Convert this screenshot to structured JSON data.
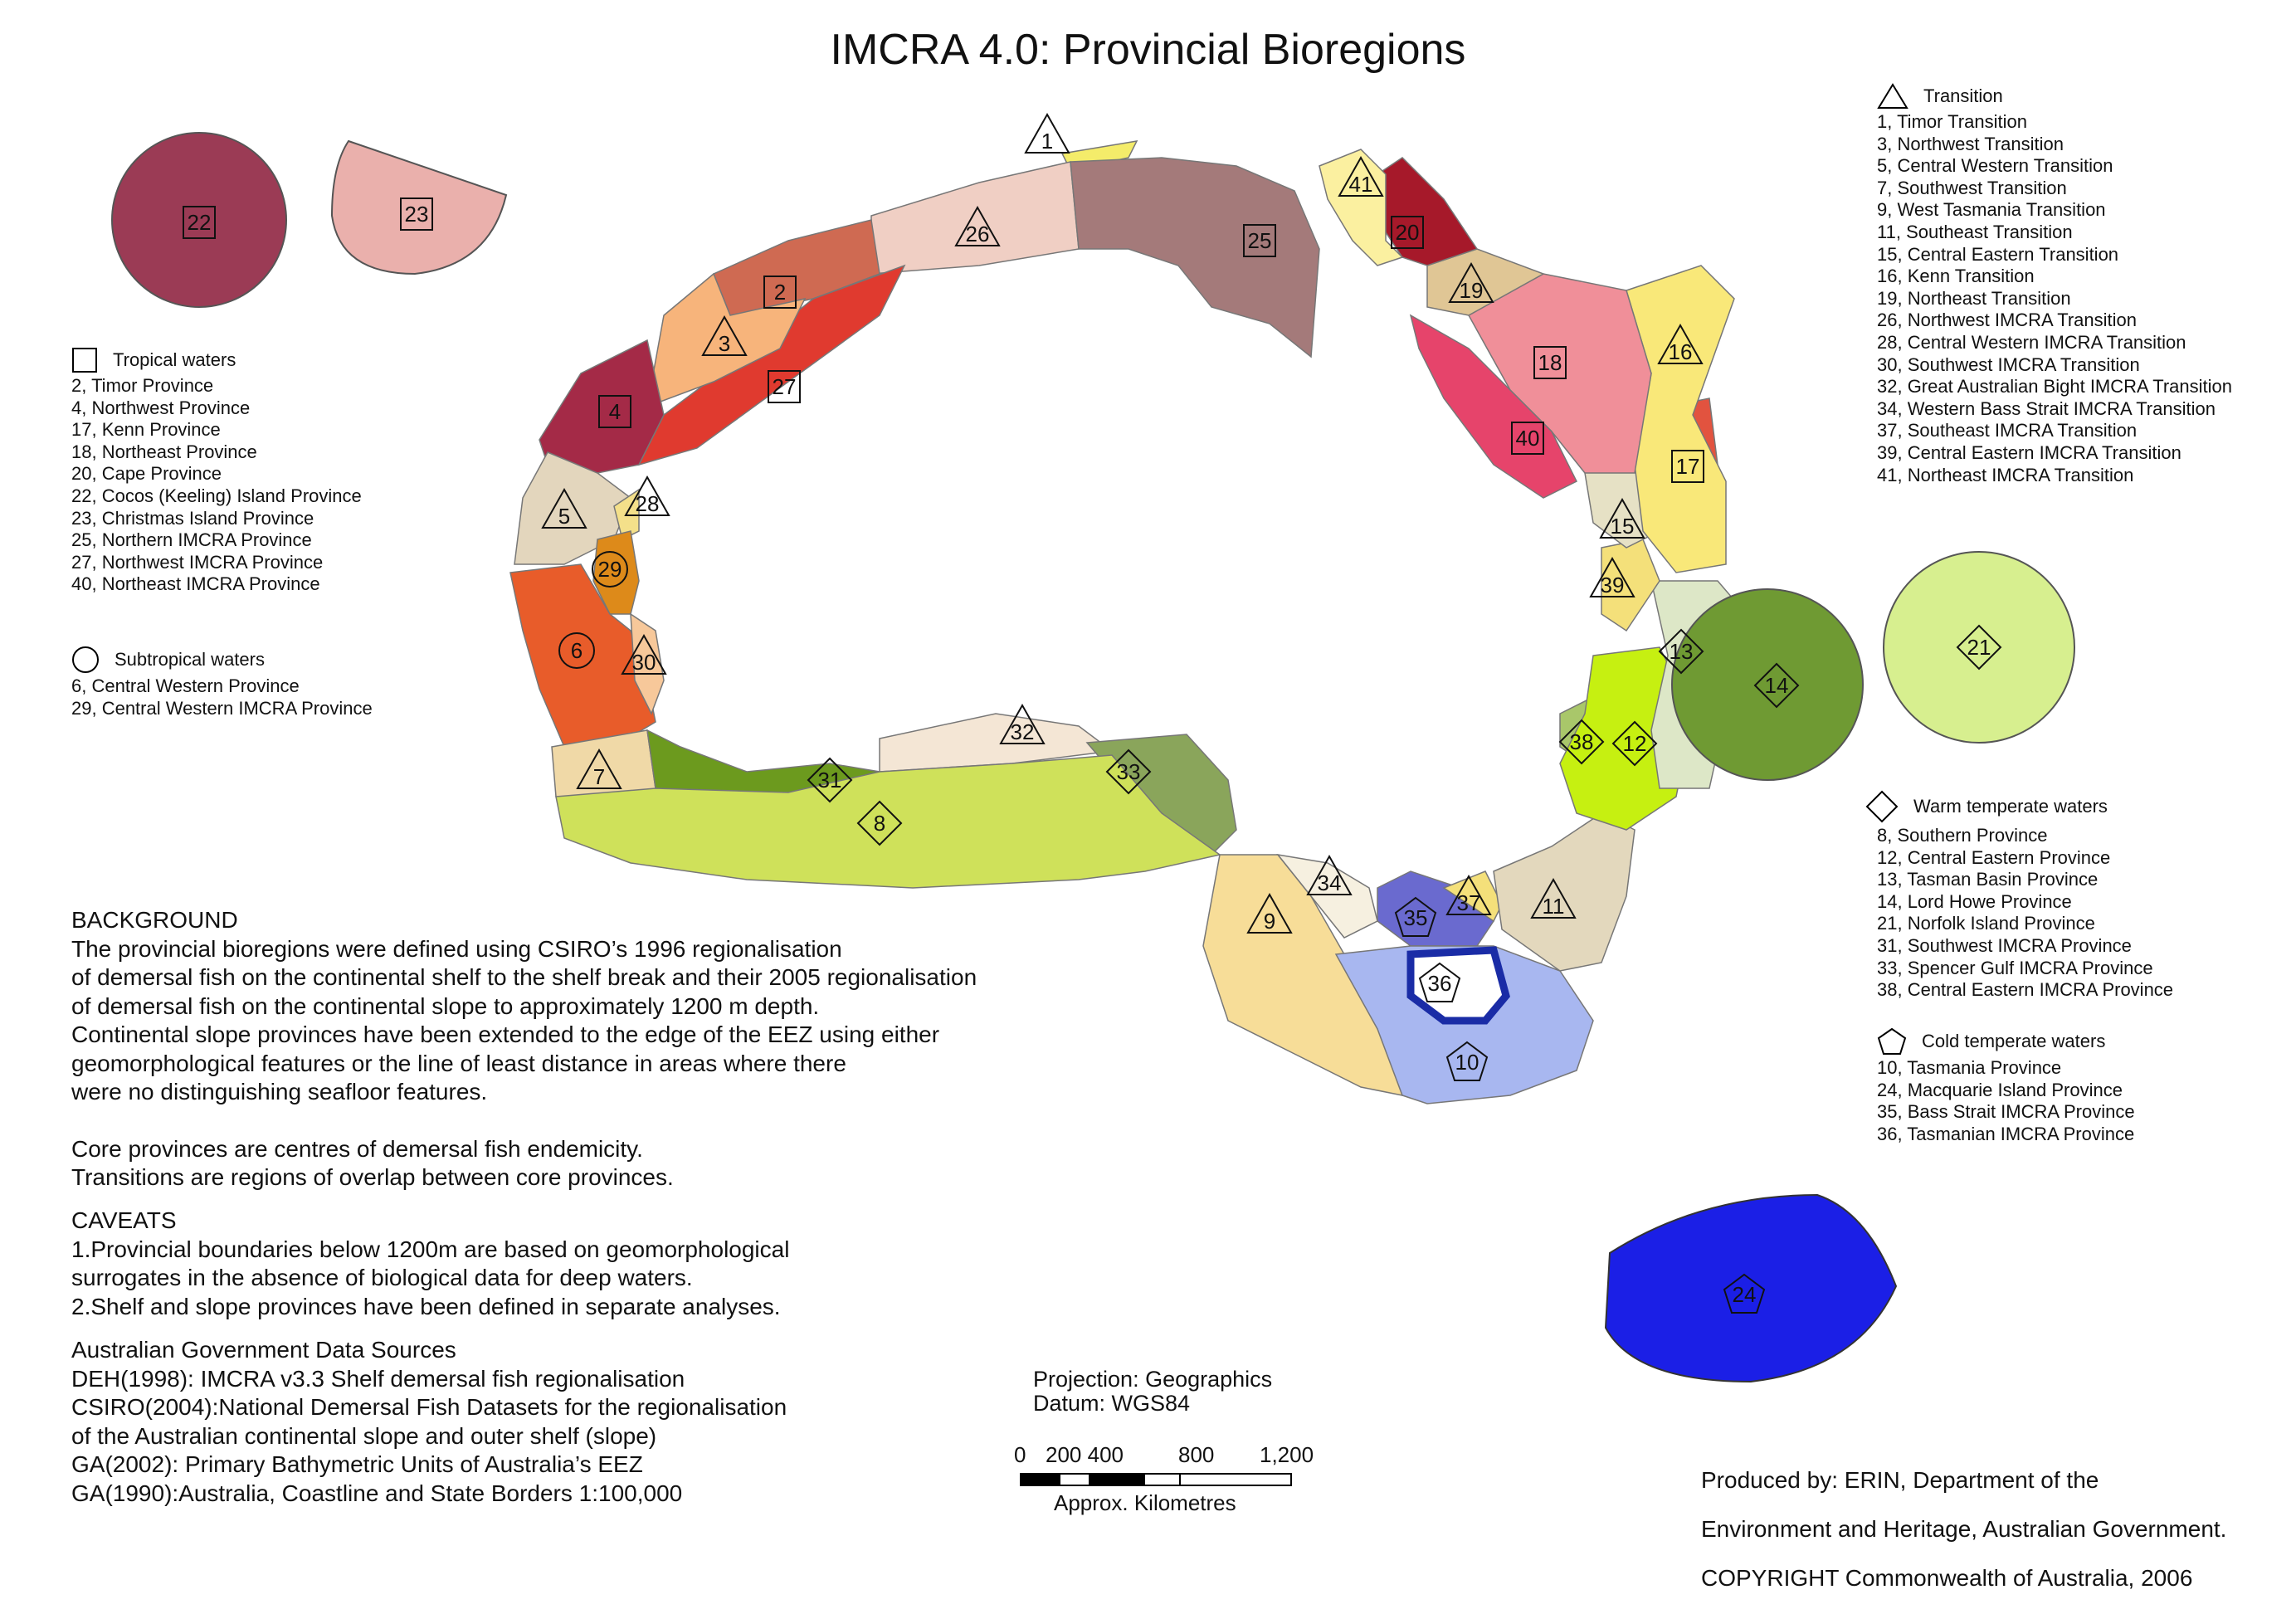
{
  "title": "IMCRA 4.0: Provincial Bioregions",
  "colors": {
    "tropical_bg": "#ffffff",
    "ocean_blue": "#1b1fe6",
    "tasmania": "#a8b7f0",
    "southern": "#cfe15a",
    "lord_howe": "#6f9a33"
  },
  "legend": {
    "transition": {
      "header": "Transition",
      "symbol": "triangle-icon",
      "items": [
        "1, Timor Transition",
        "3, Northwest Transition",
        "5, Central Western Transition",
        "7, Southwest Transition",
        "9, West Tasmania Transition",
        "11, Southeast Transition",
        "15, Central Eastern Transition",
        "16, Kenn Transition",
        "19, Northeast Transition",
        "26, Northwest IMCRA Transition",
        "28, Central Western IMCRA Transition",
        "30, Southwest IMCRA Transition",
        "32, Great Australian Bight IMCRA Transition",
        "34, Western Bass Strait IMCRA Transition",
        "37, Southeast IMCRA Transition",
        "39, Central Eastern IMCRA Transition",
        "41, Northeast IMCRA Transition"
      ]
    },
    "tropical": {
      "header": "Tropical waters",
      "symbol": "square-icon",
      "items": [
        "2, Timor Province",
        "4, Northwest Province",
        "17, Kenn Province",
        "18, Northeast Province",
        "20, Cape Province",
        "22, Cocos (Keeling) Island Province",
        "23, Christmas Island Province",
        "25, Northern IMCRA Province",
        "27, Northwest IMCRA Province",
        "40, Northeast IMCRA Province"
      ]
    },
    "subtropical": {
      "header": "Subtropical waters",
      "symbol": "circle-icon",
      "items": [
        "6, Central Western Province",
        "29, Central Western IMCRA Province"
      ]
    },
    "warm_temperate": {
      "header": "Warm temperate waters",
      "symbol": "diamond-icon",
      "items": [
        "8, Southern Province",
        "12, Central Eastern Province",
        "13, Tasman Basin Province",
        "14, Lord Howe Province",
        "21, Norfolk Island Province",
        "31, Southwest IMCRA Province",
        "33, Spencer Gulf IMCRA Province",
        "38, Central Eastern IMCRA Province"
      ]
    },
    "cold_temperate": {
      "header": "Cold temperate waters",
      "symbol": "pentagon-icon",
      "items": [
        "10, Tasmania Province",
        "24, Macquarie Island Province",
        "35, Bass Strait IMCRA Province",
        "36, Tasmanian IMCRA Province"
      ]
    }
  },
  "region_labels": {
    "r1": "1",
    "r2": "2",
    "r3": "3",
    "r4": "4",
    "r5": "5",
    "r6": "6",
    "r7": "7",
    "r8": "8",
    "r9": "9",
    "r10": "10",
    "r11": "11",
    "r12": "12",
    "r13": "13",
    "r14": "14",
    "r15": "15",
    "r16": "16",
    "r17": "17",
    "r18": "18",
    "r19": "19",
    "r20": "20",
    "r21": "21",
    "r22": "22",
    "r23": "23",
    "r24": "24",
    "r25": "25",
    "r26": "26",
    "r27": "27",
    "r28": "28",
    "r29": "29",
    "r30": "30",
    "r31": "31",
    "r32": "32",
    "r33": "33",
    "r34": "34",
    "r35": "35",
    "r36": "36",
    "r37": "37",
    "r38": "38",
    "r39": "39",
    "r40": "40",
    "r41": "41"
  },
  "background": {
    "heading": "BACKGROUND",
    "lines": [
      "The provincial bioregions were defined using CSIRO’s 1996 regionalisation",
      "of demersal fish on the continental shelf to the shelf break and their 2005 regionalisation",
      "of demersal fish on the continental slope to approximately 1200 m depth.",
      "Continental slope provinces have been extended to the edge of the EEZ using either",
      "geomorphological features or the line of least distance in areas where there",
      "were no distinguishing seafloor features."
    ],
    "core_lines": [
      "Core provinces are centres of demersal fish endemicity.",
      "Transitions are regions of overlap between core provinces."
    ]
  },
  "caveats": {
    "heading": "CAVEATS",
    "lines": [
      "1.Provincial boundaries below 1200m are based on geomorphological",
      "surrogates in the absence of biological data for deep waters.",
      "2.Shelf and slope provinces have been defined in separate analyses."
    ]
  },
  "sources": {
    "heading": "Australian Government Data Sources",
    "lines": [
      "DEH(1998): IMCRA v3.3 Shelf demersal fish regionalisation",
      "CSIRO(2004):National Demersal Fish Datasets for the regionalisation",
      "of the Australian continental slope and outer shelf (slope)",
      "GA(2002): Primary Bathymetric Units of Australia’s EEZ",
      "GA(1990):Australia, Coastline and State Borders 1:100,000"
    ]
  },
  "projection": {
    "line1": "Projection: Geographics",
    "line2": "Datum: WGS84"
  },
  "scale": {
    "ticks": [
      "0",
      "200 400",
      "800",
      "1,200"
    ],
    "unit": "Approx. Kilometres"
  },
  "credit": {
    "lines": [
      "Produced by: ERIN, Department of the",
      "Environment and Heritage,  Australian Government.",
      "COPYRIGHT Commonwealth of Australia, 2006"
    ]
  }
}
